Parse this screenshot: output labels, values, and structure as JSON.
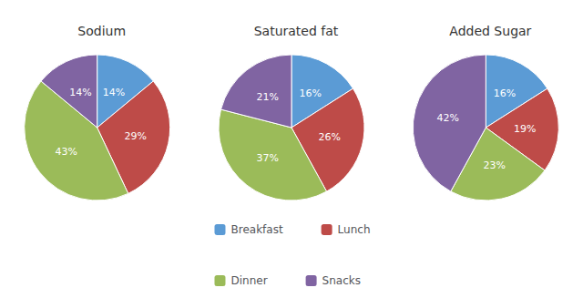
{
  "chart_data": [
    {
      "type": "pie",
      "title": "Sodium",
      "categories": [
        "Breakfast",
        "Lunch",
        "Dinner",
        "Snacks"
      ],
      "values": [
        14,
        29,
        43,
        14
      ],
      "value_labels": [
        "14%",
        "29%",
        "43%",
        "14%"
      ],
      "colors": [
        "#5B9BD5",
        "#BE4B48",
        "#9BBB59",
        "#8064A2"
      ],
      "data_labels": true,
      "legend": "bottom"
    },
    {
      "type": "pie",
      "title": "Saturated fat",
      "categories": [
        "Breakfast",
        "Lunch",
        "Dinner",
        "Snacks"
      ],
      "values": [
        16,
        26,
        37,
        21
      ],
      "value_labels": [
        "16%",
        "26%",
        "37%",
        "21%"
      ],
      "colors": [
        "#5B9BD5",
        "#BE4B48",
        "#9BBB59",
        "#8064A2"
      ],
      "data_labels": true,
      "legend": "bottom"
    },
    {
      "type": "pie",
      "title": "Added Sugar",
      "categories": [
        "Breakfast",
        "Lunch",
        "Dinner",
        "Snacks"
      ],
      "values": [
        16,
        19,
        23,
        42
      ],
      "value_labels": [
        "16%",
        "19%",
        "23%",
        "42%"
      ],
      "colors": [
        "#5B9BD5",
        "#BE4B48",
        "#9BBB59",
        "#8064A2"
      ],
      "data_labels": true,
      "legend": "bottom"
    }
  ]
}
